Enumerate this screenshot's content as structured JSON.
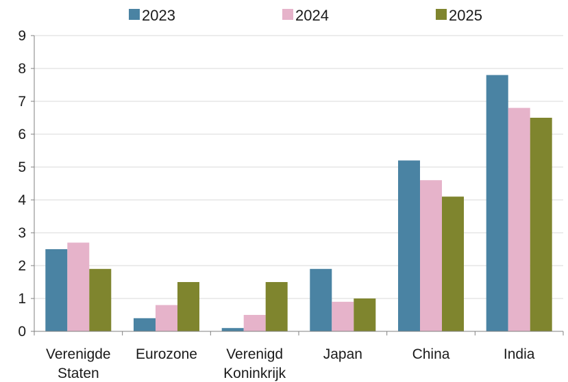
{
  "chart_data": {
    "type": "bar",
    "title": "",
    "xlabel": "",
    "ylabel": "",
    "ylim": [
      0,
      9
    ],
    "yticks": [
      0,
      1,
      2,
      3,
      4,
      5,
      6,
      7,
      8,
      9
    ],
    "grid": "horizontal",
    "legend_position": "top-center",
    "categories": [
      [
        "Verenigde",
        "Staten"
      ],
      [
        "Eurozone"
      ],
      [
        "Verenigd",
        "Koninkrijk"
      ],
      [
        "Japan"
      ],
      [
        "China"
      ],
      [
        "India"
      ]
    ],
    "series": [
      {
        "name": "2023",
        "color": "#4a83a3",
        "values": [
          2.5,
          0.4,
          0.1,
          1.9,
          5.2,
          7.8
        ]
      },
      {
        "name": "2024",
        "color": "#e6b3ca",
        "values": [
          2.7,
          0.8,
          0.5,
          0.9,
          4.6,
          6.8
        ]
      },
      {
        "name": "2025",
        "color": "#7f852e",
        "values": [
          1.9,
          1.5,
          1.5,
          1.0,
          4.1,
          6.5
        ]
      }
    ]
  }
}
